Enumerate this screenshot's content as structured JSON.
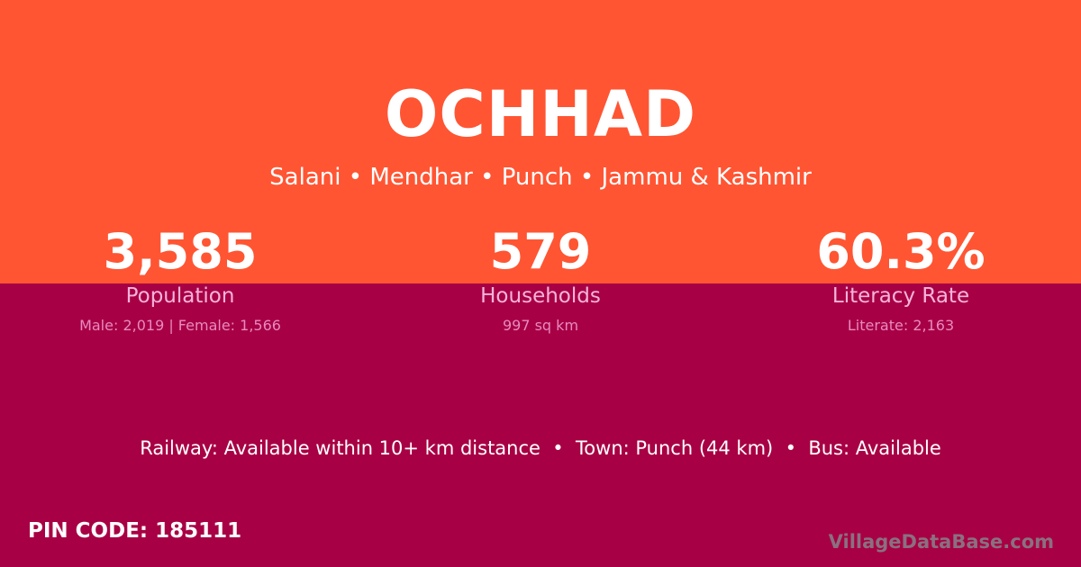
{
  "colors": {
    "top_bg": "#ff5533",
    "bottom_bg": "#a80044"
  },
  "village": {
    "name": "OCHHAD",
    "location": "Salani • Mendhar • Punch • Jammu & Kashmir"
  },
  "stats": [
    {
      "value": "3,585",
      "label": "Population",
      "sub": "Male: 2,019 | Female: 1,566"
    },
    {
      "value": "579",
      "label": "Households",
      "sub": "997 sq km"
    },
    {
      "value": "60.3%",
      "label": "Literacy Rate",
      "sub": "Literate: 2,163"
    }
  ],
  "connectivity": "Railway: Available within 10+ km distance  •  Town: Punch (44 km)  •  Bus: Available",
  "pin_code": "PIN CODE: 185111",
  "brand": "VillageDataBase.com"
}
